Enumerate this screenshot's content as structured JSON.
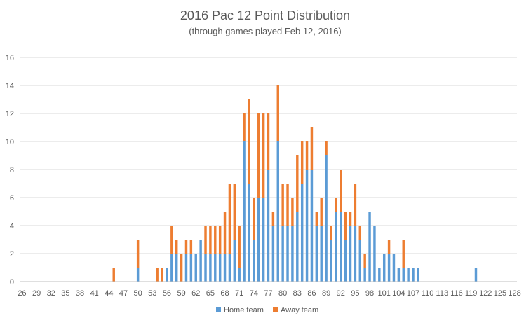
{
  "chart_data": {
    "type": "bar",
    "stacked": true,
    "title": "2016 Pac 12 Point Distribution",
    "subtitle": "(through games played Feb 12, 2016)",
    "xlabel": "",
    "ylabel": "",
    "ylim": [
      0,
      16
    ],
    "yticks": [
      0,
      2,
      4,
      6,
      8,
      10,
      12,
      14,
      16
    ],
    "grid": true,
    "legend": "bottom",
    "colors": {
      "home": "#5B9BD5",
      "away": "#ED7D31"
    },
    "x_start": 26,
    "x_end": 128,
    "x_tick_labels": [
      "26",
      "29",
      "32",
      "35",
      "38",
      "41",
      "44",
      "47",
      "50",
      "53",
      "56",
      "59",
      "62",
      "65",
      "68",
      "71",
      "74",
      "77",
      "80",
      "83",
      "86",
      "89",
      "92",
      "95",
      "98",
      "101",
      "104",
      "107",
      "110",
      "113",
      "116",
      "119",
      "122",
      "125",
      "128"
    ],
    "series": [
      {
        "name": "Home team",
        "values": [
          0,
          0,
          0,
          0,
          0,
          0,
          0,
          0,
          0,
          0,
          0,
          0,
          0,
          0,
          0,
          0,
          0,
          0,
          0,
          0,
          0,
          0,
          0,
          0,
          1,
          0,
          0,
          0,
          0,
          0,
          1,
          2,
          2,
          0,
          2,
          2,
          2,
          3,
          2,
          2,
          2,
          2,
          2,
          2,
          3,
          1,
          10,
          7,
          3,
          6,
          6,
          8,
          4,
          10,
          4,
          4,
          4,
          5,
          7,
          8,
          8,
          4,
          4,
          9,
          3,
          5,
          5,
          3,
          4,
          4,
          3,
          1,
          5,
          4,
          1,
          2,
          2,
          2,
          1,
          1,
          1,
          1,
          1,
          0,
          0,
          0,
          0,
          0,
          0,
          0,
          0,
          0,
          0,
          0,
          1,
          0,
          0,
          0,
          0,
          0,
          0,
          0,
          0
        ]
      },
      {
        "name": "Away team",
        "values": [
          0,
          0,
          0,
          0,
          0,
          0,
          0,
          0,
          0,
          0,
          0,
          0,
          0,
          0,
          0,
          0,
          0,
          0,
          0,
          1,
          0,
          0,
          0,
          0,
          2,
          0,
          0,
          0,
          1,
          1,
          0,
          2,
          1,
          2,
          1,
          1,
          0,
          0,
          2,
          2,
          2,
          2,
          3,
          5,
          4,
          3,
          2,
          6,
          3,
          6,
          6,
          4,
          1,
          4,
          3,
          3,
          2,
          4,
          3,
          2,
          3,
          1,
          2,
          1,
          1,
          1,
          3,
          2,
          1,
          3,
          1,
          1,
          0,
          0,
          0,
          0,
          1,
          0,
          0,
          2,
          0,
          0,
          0,
          0,
          0,
          0,
          0,
          0,
          0,
          0,
          0,
          0,
          0,
          0,
          0,
          0,
          0,
          0,
          0,
          0,
          0,
          0,
          0
        ]
      }
    ]
  }
}
